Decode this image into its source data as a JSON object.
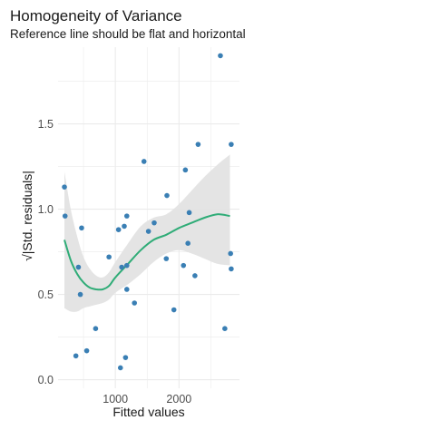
{
  "chart_data": {
    "type": "scatter",
    "title": "Homogeneity of Variance",
    "subtitle": "Reference line should be flat and horizontal",
    "xlabel": "Fitted values",
    "ylabel": "√|Std. residuals|",
    "xlim": [
      100,
      2950
    ],
    "ylim": [
      -0.05,
      1.95
    ],
    "x_ticks": [
      1000,
      2000
    ],
    "y_ticks": [
      0.0,
      0.5,
      1.0,
      1.5
    ],
    "x_tick_labels": [
      "1000",
      "2000"
    ],
    "y_tick_labels": [
      "0.0",
      "0.5",
      "1.0",
      "1.5"
    ],
    "grid": true,
    "legend": "none",
    "colors": {
      "points": "#3a7fb4",
      "smooth": "#2fac77",
      "band": "#e3e3e3",
      "grid": "#ebebeb"
    },
    "points": [
      {
        "x": 200,
        "y": 1.13
      },
      {
        "x": 210,
        "y": 0.96
      },
      {
        "x": 380,
        "y": 0.14
      },
      {
        "x": 420,
        "y": 0.66
      },
      {
        "x": 450,
        "y": 0.5
      },
      {
        "x": 470,
        "y": 0.89
      },
      {
        "x": 550,
        "y": 0.17
      },
      {
        "x": 690,
        "y": 0.3
      },
      {
        "x": 900,
        "y": 0.72
      },
      {
        "x": 1050,
        "y": 0.88
      },
      {
        "x": 1080,
        "y": 0.07
      },
      {
        "x": 1100,
        "y": 0.66
      },
      {
        "x": 1140,
        "y": 0.9
      },
      {
        "x": 1160,
        "y": 0.13
      },
      {
        "x": 1180,
        "y": 0.96
      },
      {
        "x": 1180,
        "y": 0.53
      },
      {
        "x": 1180,
        "y": 0.67
      },
      {
        "x": 1300,
        "y": 0.45
      },
      {
        "x": 1450,
        "y": 1.28
      },
      {
        "x": 1520,
        "y": 0.87
      },
      {
        "x": 1610,
        "y": 0.92
      },
      {
        "x": 1800,
        "y": 0.71
      },
      {
        "x": 1810,
        "y": 1.08
      },
      {
        "x": 1920,
        "y": 0.41
      },
      {
        "x": 2070,
        "y": 0.67
      },
      {
        "x": 2100,
        "y": 1.23
      },
      {
        "x": 2140,
        "y": 0.8
      },
      {
        "x": 2160,
        "y": 0.98
      },
      {
        "x": 2250,
        "y": 0.61
      },
      {
        "x": 2300,
        "y": 1.38
      },
      {
        "x": 2650,
        "y": 1.9
      },
      {
        "x": 2720,
        "y": 0.3
      },
      {
        "x": 2810,
        "y": 0.74
      },
      {
        "x": 2820,
        "y": 1.38
      },
      {
        "x": 2820,
        "y": 0.65
      }
    ],
    "smooth": {
      "x": [
        200,
        300,
        400,
        500,
        600,
        700,
        800,
        900,
        1000,
        1200,
        1400,
        1600,
        1800,
        2000,
        2200,
        2400,
        2600,
        2800
      ],
      "y": [
        0.82,
        0.7,
        0.62,
        0.57,
        0.54,
        0.53,
        0.53,
        0.55,
        0.6,
        0.68,
        0.76,
        0.82,
        0.85,
        0.89,
        0.92,
        0.95,
        0.97,
        0.96
      ],
      "lower": [
        0.42,
        0.4,
        0.4,
        0.42,
        0.43,
        0.44,
        0.45,
        0.47,
        0.51,
        0.56,
        0.62,
        0.69,
        0.74,
        0.76,
        0.74,
        0.71,
        0.68,
        0.67
      ],
      "upper": [
        1.22,
        1.0,
        0.84,
        0.72,
        0.65,
        0.61,
        0.6,
        0.63,
        0.69,
        0.8,
        0.9,
        0.95,
        0.97,
        1.03,
        1.11,
        1.19,
        1.26,
        1.32
      ]
    }
  }
}
